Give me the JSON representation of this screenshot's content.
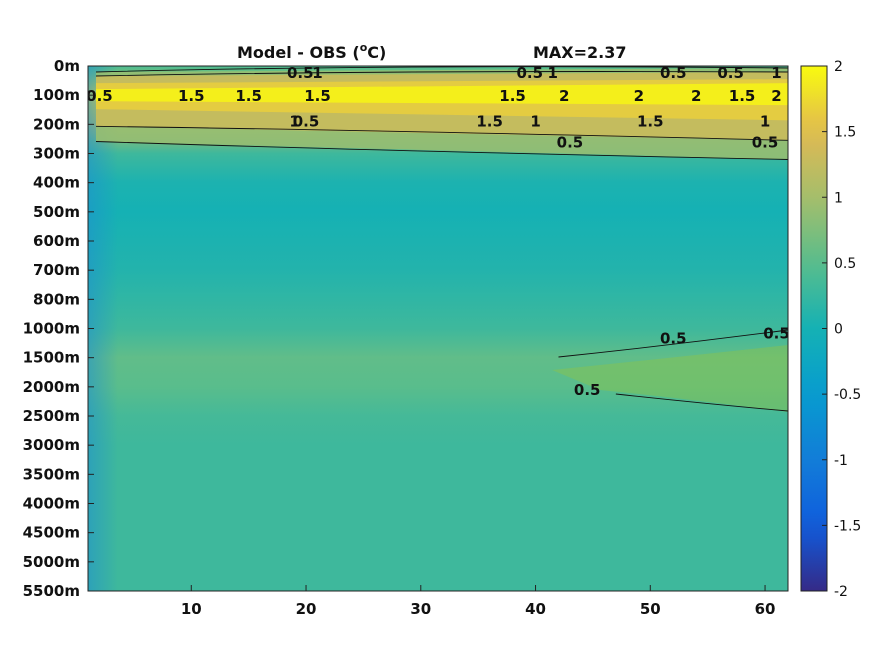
{
  "chart_data": {
    "type": "heatmap",
    "title_left": "Model - OBS (°C)",
    "title_left_main": "Model - OBS (",
    "title_left_sup": "o",
    "title_left_end": "C)",
    "title_right": "MAX=2.37",
    "xlabel": "",
    "ylabel": "",
    "x_range": [
      1,
      62
    ],
    "x_ticks": [
      10,
      20,
      30,
      40,
      50,
      60
    ],
    "x_tick_labels": [
      "10",
      "20",
      "30",
      "40",
      "50",
      "60"
    ],
    "y_tick_labels": [
      "0m",
      "100m",
      "200m",
      "300m",
      "400m",
      "500m",
      "600m",
      "700m",
      "800m",
      "1000m",
      "1500m",
      "2000m",
      "2500m",
      "3000m",
      "3500m",
      "4000m",
      "4500m",
      "5000m",
      "5500m"
    ],
    "colorbar": {
      "range": [
        -2,
        2
      ],
      "ticks": [
        2,
        1.5,
        1,
        0.5,
        0,
        -0.5,
        -1,
        -1.5,
        -2
      ],
      "tick_labels": [
        "2",
        "1.5",
        "1",
        "0.5",
        "0",
        "-0.5",
        "-1",
        "-1.5",
        "-2"
      ],
      "colormap": "parula"
    },
    "depth_profile": [
      {
        "level": "0m",
        "value": 0.4
      },
      {
        "level": "100m",
        "value": 1.7
      },
      {
        "level": "200m",
        "value": 1.1
      },
      {
        "level": "300m",
        "value": 0.3
      },
      {
        "level": "400m",
        "value": 0.05
      },
      {
        "level": "500m",
        "value": 0.0
      },
      {
        "level": "600m",
        "value": 0.05
      },
      {
        "level": "700m",
        "value": 0.1
      },
      {
        "level": "800m",
        "value": 0.2
      },
      {
        "level": "1000m",
        "value": 0.3
      },
      {
        "level": "1500m",
        "value": 0.55
      },
      {
        "level": "2000m",
        "value": 0.5
      },
      {
        "level": "2500m",
        "value": 0.35
      },
      {
        "level": "3000m",
        "value": 0.3
      },
      {
        "level": "3500m",
        "value": 0.3
      },
      {
        "level": "4000m",
        "value": 0.3
      },
      {
        "level": "4500m",
        "value": 0.3
      },
      {
        "level": "5000m",
        "value": 0.3
      },
      {
        "level": "5500m",
        "value": 0.3
      }
    ],
    "contour_labels": [
      {
        "text": "0.5",
        "x": 19.5,
        "level": "0m"
      },
      {
        "text": "1",
        "x": 21,
        "level": "0m"
      },
      {
        "text": "0.5",
        "x": 39.5,
        "level": "0m"
      },
      {
        "text": "1",
        "x": 41.5,
        "level": "0m"
      },
      {
        "text": "0.5",
        "x": 52,
        "level": "0m"
      },
      {
        "text": "0.5",
        "x": 57,
        "level": "0m"
      },
      {
        "text": "1",
        "x": 61,
        "level": "0m"
      },
      {
        "text": "0.5",
        "x": 2,
        "level": "100m"
      },
      {
        "text": "1.5",
        "x": 10,
        "level": "100m"
      },
      {
        "text": "1.5",
        "x": 15,
        "level": "100m"
      },
      {
        "text": "1.5",
        "x": 21,
        "level": "100m"
      },
      {
        "text": "1.5",
        "x": 38,
        "level": "100m"
      },
      {
        "text": "2",
        "x": 42.5,
        "level": "100m"
      },
      {
        "text": "2",
        "x": 49,
        "level": "100m"
      },
      {
        "text": "2",
        "x": 54,
        "level": "100m"
      },
      {
        "text": "1.5",
        "x": 58,
        "level": "100m"
      },
      {
        "text": "2",
        "x": 61,
        "level": "100m"
      },
      {
        "text": "1",
        "x": 19,
        "level": "200m"
      },
      {
        "text": "1.5",
        "x": 36,
        "level": "200m"
      },
      {
        "text": "1.5",
        "x": 50,
        "level": "200m"
      },
      {
        "text": "1",
        "x": 40,
        "level": "200m"
      },
      {
        "text": "1",
        "x": 60,
        "level": "200m"
      },
      {
        "text": "0.5",
        "x": 20,
        "level": "200m"
      },
      {
        "text": "0.5",
        "x": 43,
        "level": "300m"
      },
      {
        "text": "0.5",
        "x": 60,
        "level": "300m"
      },
      {
        "text": "0.5",
        "x": 52,
        "level": "1500m"
      },
      {
        "text": "0.5",
        "x": 61,
        "level": "1000m"
      },
      {
        "text": "0.5",
        "x": 44.5,
        "level": "2000m"
      }
    ]
  }
}
